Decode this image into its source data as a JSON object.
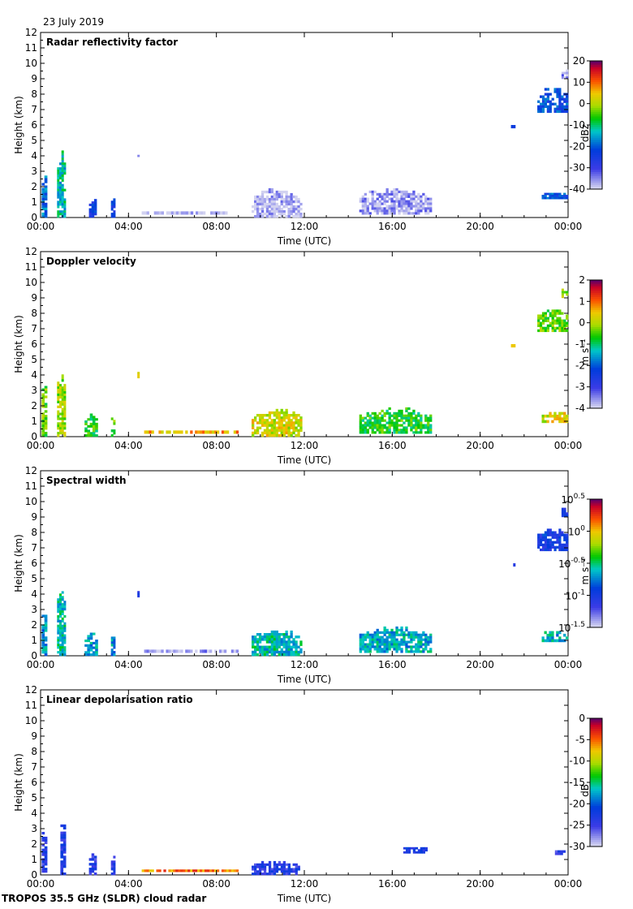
{
  "date": "23 July 2019",
  "footer": "TROPOS 35.5 GHz (SLDR) cloud radar",
  "chart_data": [
    {
      "type": "heatmap",
      "title": "Radar reflectivity factor",
      "xlabel": "Time (UTC)",
      "ylabel": "Height (km)",
      "xlim": [
        0,
        24
      ],
      "ylim": [
        0,
        12
      ],
      "x_ticks": [
        "00:00",
        "04:00",
        "08:00",
        "12:00",
        "16:00",
        "20:00",
        "00:00"
      ],
      "y_ticks": [
        "0",
        "1",
        "2",
        "3",
        "4",
        "5",
        "6",
        "7",
        "8",
        "9",
        "10",
        "11",
        "12"
      ],
      "colorbar": {
        "label": "dBz",
        "ticks": [
          "20",
          "10",
          "0",
          "-10",
          "-20",
          "-30",
          "-40"
        ],
        "range": [
          -40,
          20
        ]
      },
      "features": [
        {
          "t": [
            0.05,
            0.3
          ],
          "h": [
            0,
            3.2
          ],
          "v": 0.35
        },
        {
          "t": [
            0.75,
            1.15
          ],
          "h": [
            0,
            4.5
          ],
          "v": 0.45
        },
        {
          "t": [
            2.2,
            2.55
          ],
          "h": [
            0,
            1.5
          ],
          "v": 0.25
        },
        {
          "t": [
            3.2,
            3.4
          ],
          "h": [
            0,
            1.4
          ],
          "v": 0.25
        },
        {
          "t": [
            4.4,
            4.5
          ],
          "h": [
            3.8,
            4.2
          ],
          "v": 0.0
        },
        {
          "t": [
            4.6,
            8.5
          ],
          "h": [
            0.2,
            0.4
          ],
          "v": 0.0
        },
        {
          "t": [
            9.6,
            11.9
          ],
          "h": [
            0,
            1.9
          ],
          "v": 0.02
        },
        {
          "t": [
            14.5,
            17.8
          ],
          "h": [
            0.2,
            1.9
          ],
          "v": 0.05
        },
        {
          "t": [
            22.6,
            24
          ],
          "h": [
            6.8,
            8.4
          ],
          "v": 0.3
        },
        {
          "t": [
            23.7,
            24
          ],
          "h": [
            9,
            9.6
          ],
          "v": 0.05
        },
        {
          "t": [
            21.4,
            21.6
          ],
          "h": [
            5.8,
            6.0
          ],
          "v": 0.3
        },
        {
          "t": [
            22.8,
            24
          ],
          "h": [
            1.2,
            1.6
          ],
          "v": 0.3
        }
      ]
    },
    {
      "type": "heatmap",
      "title": "Doppler velocity",
      "xlabel": "Time (UTC)",
      "ylabel": "Height (km)",
      "xlim": [
        0,
        24
      ],
      "ylim": [
        0,
        12
      ],
      "x_ticks": [
        "00:00",
        "04:00",
        "08:00",
        "12:00",
        "16:00",
        "20:00",
        "00:00"
      ],
      "y_ticks": [
        "0",
        "1",
        "2",
        "3",
        "4",
        "5",
        "6",
        "7",
        "8",
        "9",
        "10",
        "11",
        "12"
      ],
      "colorbar": {
        "label": "m s⁻¹",
        "ticks": [
          "2",
          "1",
          "0",
          "-1",
          "-2",
          "-3",
          "-4"
        ],
        "range": [
          -4,
          2
        ]
      },
      "features": [
        {
          "t": [
            0.05,
            0.3
          ],
          "h": [
            0,
            3.6
          ],
          "v": 0.6
        },
        {
          "t": [
            0.75,
            1.15
          ],
          "h": [
            0,
            4.5
          ],
          "v": 0.65
        },
        {
          "t": [
            2.0,
            2.6
          ],
          "h": [
            0,
            1.5
          ],
          "v": 0.55
        },
        {
          "t": [
            3.2,
            3.4
          ],
          "h": [
            0,
            1.4
          ],
          "v": 0.6
        },
        {
          "t": [
            4.4,
            4.5
          ],
          "h": [
            3.8,
            4.2
          ],
          "v": 0.75
        },
        {
          "t": [
            4.6,
            9.0
          ],
          "h": [
            0.2,
            0.4
          ],
          "v": 0.78
        },
        {
          "t": [
            9.6,
            11.9
          ],
          "h": [
            0,
            1.8
          ],
          "v": 0.7
        },
        {
          "t": [
            14.5,
            17.8
          ],
          "h": [
            0.2,
            1.9
          ],
          "v": 0.55
        },
        {
          "t": [
            22.6,
            24
          ],
          "h": [
            6.8,
            8.4
          ],
          "v": 0.6
        },
        {
          "t": [
            23.7,
            24
          ],
          "h": [
            9,
            9.6
          ],
          "v": 0.65
        },
        {
          "t": [
            21.4,
            21.6
          ],
          "h": [
            5.8,
            6.0
          ],
          "v": 0.8
        },
        {
          "t": [
            22.8,
            24
          ],
          "h": [
            0.9,
            1.6
          ],
          "v": 0.7
        }
      ]
    },
    {
      "type": "heatmap",
      "title": "Spectral width",
      "xlabel": "Time (UTC)",
      "ylabel": "Height (km)",
      "xlim": [
        0,
        24
      ],
      "ylim": [
        0,
        12
      ],
      "x_ticks": [
        "00:00",
        "04:00",
        "08:00",
        "12:00",
        "16:00",
        "20:00",
        "00:00"
      ],
      "y_ticks": [
        "0",
        "1",
        "2",
        "3",
        "4",
        "5",
        "6",
        "7",
        "8",
        "9",
        "10",
        "11",
        "12"
      ],
      "colorbar": {
        "label": "m s⁻¹",
        "ticks": [
          "10^0.5",
          "10^0",
          "10^-0.5",
          "10^-1",
          "10^-1.5"
        ],
        "range": [
          -1.5,
          0.5
        ]
      },
      "features": [
        {
          "t": [
            0.05,
            0.3
          ],
          "h": [
            0,
            3.6
          ],
          "v": 0.4
        },
        {
          "t": [
            0.75,
            1.15
          ],
          "h": [
            0,
            4.5
          ],
          "v": 0.45
        },
        {
          "t": [
            2.0,
            2.6
          ],
          "h": [
            0,
            1.5
          ],
          "v": 0.4
        },
        {
          "t": [
            3.2,
            3.4
          ],
          "h": [
            0,
            1.4
          ],
          "v": 0.4
        },
        {
          "t": [
            4.4,
            4.5
          ],
          "h": [
            3.8,
            4.2
          ],
          "v": 0.25
        },
        {
          "t": [
            4.6,
            9.0
          ],
          "h": [
            0.2,
            0.4
          ],
          "v": 0.05
        },
        {
          "t": [
            9.6,
            11.9
          ],
          "h": [
            0,
            1.8
          ],
          "v": 0.45
        },
        {
          "t": [
            14.5,
            17.8
          ],
          "h": [
            0.2,
            1.9
          ],
          "v": 0.42
        },
        {
          "t": [
            22.6,
            24
          ],
          "h": [
            6.8,
            8.4
          ],
          "v": 0.25
        },
        {
          "t": [
            23.7,
            24
          ],
          "h": [
            9,
            9.6
          ],
          "v": 0.25
        },
        {
          "t": [
            21.4,
            21.6
          ],
          "h": [
            5.8,
            6.0
          ],
          "v": 0.25
        },
        {
          "t": [
            22.8,
            24
          ],
          "h": [
            0.9,
            1.6
          ],
          "v": 0.42
        }
      ]
    },
    {
      "type": "heatmap",
      "title": "Linear depolarisation ratio",
      "xlabel": "Time (UTC)",
      "ylabel": "Height (km)",
      "xlim": [
        0,
        24
      ],
      "ylim": [
        0,
        12
      ],
      "x_ticks": [
        "00:00",
        "04:00",
        "08:00",
        "12:00",
        "16:00",
        "20:00",
        "00:00"
      ],
      "y_ticks": [
        "0",
        "1",
        "2",
        "3",
        "4",
        "5",
        "6",
        "7",
        "8",
        "9",
        "10",
        "11",
        "12"
      ],
      "colorbar": {
        "label": "dB",
        "ticks": [
          "0",
          "-5",
          "-10",
          "-15",
          "-20",
          "-25",
          "-30"
        ],
        "range": [
          -30,
          0
        ]
      },
      "features": [
        {
          "t": [
            0.05,
            0.3
          ],
          "h": [
            0,
            3.1
          ],
          "v": 0.2
        },
        {
          "t": [
            0.9,
            1.15
          ],
          "h": [
            0,
            3.9
          ],
          "v": 0.22
        },
        {
          "t": [
            2.2,
            2.55
          ],
          "h": [
            0,
            1.4
          ],
          "v": 0.2
        },
        {
          "t": [
            3.2,
            3.4
          ],
          "h": [
            0,
            1.4
          ],
          "v": 0.2
        },
        {
          "t": [
            4.6,
            9.0
          ],
          "h": [
            0.2,
            0.35
          ],
          "v": 0.82
        },
        {
          "t": [
            9.6,
            11.8
          ],
          "h": [
            0,
            0.9
          ],
          "v": 0.2
        },
        {
          "t": [
            16.5,
            17.6
          ],
          "h": [
            1.4,
            1.8
          ],
          "v": 0.25
        },
        {
          "t": [
            23.4,
            24
          ],
          "h": [
            1.3,
            1.6
          ],
          "v": 0.2
        }
      ]
    }
  ]
}
